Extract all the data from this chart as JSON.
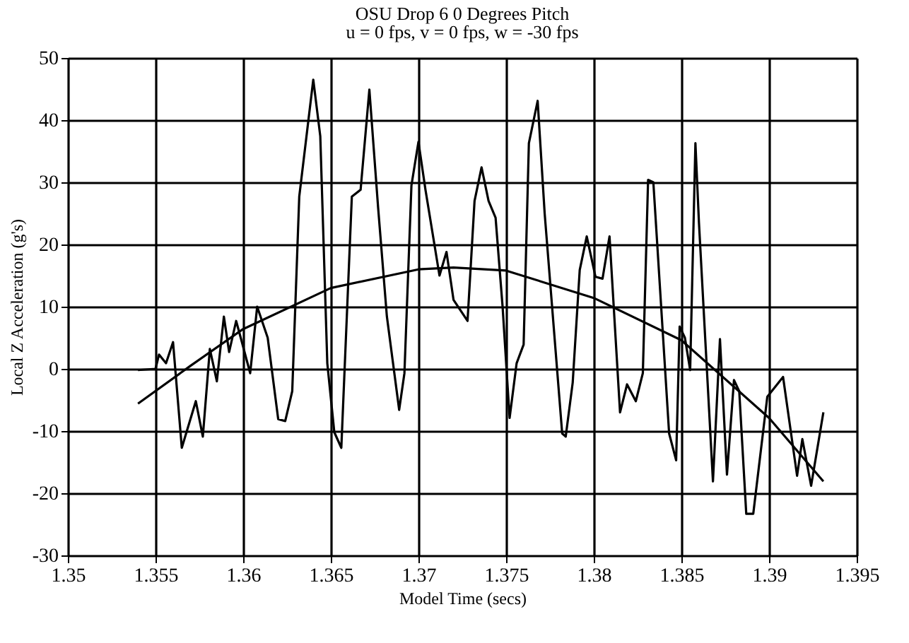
{
  "chart_data": {
    "type": "line",
    "title": "OSU Drop 6  0 Degrees Pitch",
    "subtitle": "u = 0 fps,  v = 0 fps,  w = -30 fps",
    "xlabel": "Model Time (secs)",
    "ylabel": "Local Z Acceleration (g's)",
    "xlim": [
      1.35,
      1.395
    ],
    "xticks": [
      1.35,
      1.355,
      1.36,
      1.365,
      1.37,
      1.375,
      1.38,
      1.385,
      1.39,
      1.395
    ],
    "ylim": [
      -30,
      50
    ],
    "yticks": [
      -30,
      -20,
      -10,
      0,
      10,
      20,
      30,
      40,
      50
    ],
    "grid": true,
    "marker": "none",
    "line_style": "solid",
    "series": [
      {
        "color": "#000000",
        "x": [
          1.354,
          1.355,
          1.3552,
          1.3556,
          1.356,
          1.3565,
          1.3573,
          1.3577,
          1.3581,
          1.3585,
          1.3589,
          1.3592,
          1.3596,
          1.3599,
          1.3604,
          1.3608,
          1.3614,
          1.362,
          1.3624,
          1.3628,
          1.3632,
          1.364,
          1.3644,
          1.3648,
          1.3652,
          1.3656,
          1.3662,
          1.3667,
          1.3672,
          1.3677,
          1.3682,
          1.3689,
          1.3692,
          1.3696,
          1.37,
          1.3704,
          1.3712,
          1.3716,
          1.372,
          1.3728,
          1.3732,
          1.3736,
          1.374,
          1.3744,
          1.3748,
          1.3752,
          1.3756,
          1.376,
          1.3763,
          1.3768,
          1.3772,
          1.3782,
          1.3784,
          1.3788,
          1.3792,
          1.3796,
          1.3801,
          1.3805,
          1.3809,
          1.3815,
          1.3819,
          1.3824,
          1.3828,
          1.3831,
          1.3834,
          1.3843,
          1.3847,
          1.3849,
          1.3852,
          1.3855,
          1.3858,
          1.386,
          1.3868,
          1.3872,
          1.3876,
          1.388,
          1.3883,
          1.3887,
          1.3891,
          1.3899,
          1.3908,
          1.3916,
          1.3919,
          1.3924,
          1.3931
        ],
        "values": [
          -0.2,
          0,
          2.3,
          0.9,
          4.3,
          -12.7,
          -5.2,
          -10.9,
          3.2,
          -2,
          8.4,
          2.7,
          7.7,
          4.6,
          -0.7,
          10,
          5,
          -8.1,
          -8.4,
          -3.6,
          27.7,
          46.5,
          37.4,
          0.9,
          -10.2,
          -12.7,
          27.7,
          28.8,
          44.9,
          25.9,
          8.4,
          -6.6,
          -0.7,
          29.5,
          36.5,
          28.8,
          15,
          18.8,
          11.1,
          7.7,
          27,
          32.4,
          27,
          24.3,
          10,
          -7.9,
          0.9,
          3.9,
          36.3,
          43.1,
          25,
          -10.4,
          -10.9,
          -2.2,
          15.9,
          21.3,
          14.8,
          14.5,
          21.3,
          -7,
          -2.5,
          -5.2,
          -0.7,
          30.4,
          30,
          -10.4,
          -14.7,
          6.8,
          5,
          -0.2,
          36.3,
          23.6,
          -18.1,
          4.8,
          -17,
          -1.8,
          -3.6,
          -23.3,
          -23.3,
          -4.5,
          -1.3,
          -17.2,
          -11.3,
          -18.8,
          -7
        ]
      },
      {
        "color": "#000000",
        "x": [
          1.354,
          1.357,
          1.36,
          1.365,
          1.37,
          1.372,
          1.375,
          1.38,
          1.385,
          1.39,
          1.3931
        ],
        "values": [
          -5.6,
          0.5,
          6.4,
          13,
          16,
          16.3,
          15.8,
          11.4,
          4.6,
          -7.9,
          -18.1
        ]
      }
    ]
  }
}
